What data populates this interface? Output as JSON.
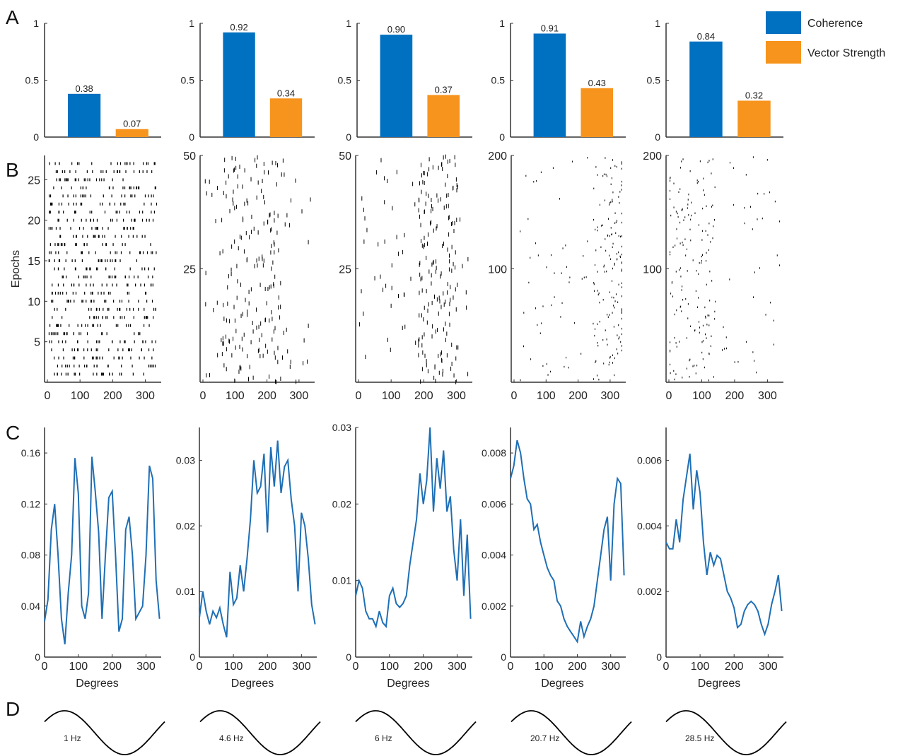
{
  "panel_labels": [
    "A",
    "B",
    "C",
    "D"
  ],
  "colors": {
    "coherence": "#0070C0",
    "vector_strength": "#F7941D",
    "line": "#1F6FB5",
    "raster": "#000000",
    "axis": "#333333"
  },
  "legend": [
    {
      "label": "Coherence",
      "color": "#0070C0"
    },
    {
      "label": "Vector Strength",
      "color": "#F7941D"
    }
  ],
  "chart_data": [
    {
      "panel": "A",
      "type": "bar",
      "column": 1,
      "categories": [
        "Coherence",
        "Vector Strength"
      ],
      "values": [
        0.38,
        0.07
      ],
      "value_labels": [
        "0.38",
        "0.07"
      ],
      "ylim": [
        0,
        1
      ],
      "yticks": [
        "0",
        "0.5",
        "1"
      ]
    },
    {
      "panel": "A",
      "type": "bar",
      "column": 2,
      "categories": [
        "Coherence",
        "Vector Strength"
      ],
      "values": [
        0.92,
        0.34
      ],
      "value_labels": [
        "0.92",
        "0.34"
      ],
      "ylim": [
        0,
        1
      ],
      "yticks": [
        "0",
        "0.5",
        "1"
      ]
    },
    {
      "panel": "A",
      "type": "bar",
      "column": 3,
      "categories": [
        "Coherence",
        "Vector Strength"
      ],
      "values": [
        0.9,
        0.37
      ],
      "value_labels": [
        "0.90",
        "0.37"
      ],
      "ylim": [
        0,
        1
      ],
      "yticks": [
        "0",
        "0.5",
        "1"
      ]
    },
    {
      "panel": "A",
      "type": "bar",
      "column": 4,
      "categories": [
        "Coherence",
        "Vector Strength"
      ],
      "values": [
        0.91,
        0.43
      ],
      "value_labels": [
        "0.91",
        "0.43"
      ],
      "ylim": [
        0,
        1
      ],
      "yticks": [
        "0",
        "0.5",
        "1"
      ]
    },
    {
      "panel": "A",
      "type": "bar",
      "column": 5,
      "categories": [
        "Coherence",
        "Vector Strength"
      ],
      "values": [
        0.84,
        0.32
      ],
      "value_labels": [
        "0.84",
        "0.32"
      ],
      "ylim": [
        0,
        1
      ],
      "yticks": [
        "0",
        "0.5",
        "1"
      ]
    },
    {
      "panel": "B",
      "type": "scatter",
      "column": 1,
      "ylabel": "Epochs",
      "xlim": [
        0,
        340
      ],
      "ylim": [
        0,
        28
      ],
      "xticks": [
        "0",
        "100",
        "200",
        "300"
      ],
      "yticks": [
        "5",
        "10",
        "15",
        "20",
        "25"
      ],
      "dense": true,
      "raster": [
        {
          "t": 16,
          "phases": [
            10,
            22,
            50,
            58,
            64,
            84,
            100,
            108,
            135,
            148,
            160,
            175,
            190,
            205,
            225,
            240,
            258,
            270,
            290,
            305
          ]
        },
        {
          "t": 40,
          "phases": [
            18,
            40,
            46,
            72,
            95,
            114,
            128,
            152,
            170,
            184,
            210,
            238,
            250,
            276,
            300,
            318
          ]
        }
      ]
    },
    {
      "panel": "B",
      "type": "scatter",
      "column": 2,
      "xlim": [
        0,
        340
      ],
      "ylim": [
        0,
        50
      ],
      "xticks": [
        "0",
        "100",
        "200",
        "300"
      ],
      "yticks": [
        "25",
        "50"
      ]
    },
    {
      "panel": "B",
      "type": "scatter",
      "column": 3,
      "xlim": [
        0,
        340
      ],
      "ylim": [
        0,
        50
      ],
      "xticks": [
        "0",
        "100",
        "200",
        "300"
      ],
      "yticks": [
        "25",
        "50"
      ]
    },
    {
      "panel": "B",
      "type": "scatter",
      "column": 4,
      "xlim": [
        0,
        340
      ],
      "ylim": [
        0,
        200
      ],
      "xticks": [
        "0",
        "100",
        "200",
        "300"
      ],
      "yticks": [
        "100",
        "200"
      ]
    },
    {
      "panel": "B",
      "type": "scatter",
      "column": 5,
      "xlim": [
        0,
        340
      ],
      "ylim": [
        0,
        200
      ],
      "xticks": [
        "0",
        "100",
        "200",
        "300"
      ],
      "yticks": [
        "100",
        "200"
      ]
    },
    {
      "panel": "C",
      "type": "line",
      "column": 1,
      "xlabel": "Degrees",
      "xlim": [
        0,
        345
      ],
      "ylim": [
        0,
        0.18
      ],
      "xticks": [
        "0",
        "100",
        "200",
        "300"
      ],
      "yticks": [
        "0",
        "0.04",
        "0.08",
        "0.12",
        "0.16"
      ],
      "x": [
        0,
        10,
        20,
        30,
        40,
        50,
        60,
        70,
        80,
        90,
        100,
        110,
        120,
        130,
        140,
        150,
        160,
        170,
        180,
        190,
        200,
        210,
        220,
        230,
        240,
        250,
        260,
        270,
        280,
        290,
        300,
        310,
        320,
        330,
        340
      ],
      "y": [
        0.028,
        0.045,
        0.1,
        0.12,
        0.08,
        0.03,
        0.01,
        0.05,
        0.08,
        0.156,
        0.128,
        0.04,
        0.03,
        0.05,
        0.157,
        0.13,
        0.098,
        0.03,
        0.08,
        0.125,
        0.13,
        0.08,
        0.02,
        0.03,
        0.1,
        0.11,
        0.08,
        0.03,
        0.035,
        0.04,
        0.08,
        0.15,
        0.14,
        0.06,
        0.03
      ]
    },
    {
      "panel": "C",
      "type": "line",
      "column": 2,
      "xlabel": "Degrees",
      "xlim": [
        0,
        345
      ],
      "ylim": [
        0,
        0.035
      ],
      "xticks": [
        "0",
        "100",
        "200",
        "300"
      ],
      "yticks": [
        "0",
        "0.01",
        "0.02",
        "0.03"
      ],
      "x": [
        0,
        10,
        20,
        30,
        40,
        50,
        60,
        70,
        80,
        90,
        100,
        110,
        120,
        130,
        140,
        150,
        160,
        170,
        180,
        190,
        200,
        210,
        220,
        230,
        240,
        250,
        260,
        270,
        280,
        290,
        300,
        310,
        320,
        330,
        340
      ],
      "y": [
        0.006,
        0.01,
        0.007,
        0.005,
        0.007,
        0.006,
        0.0075,
        0.005,
        0.003,
        0.013,
        0.008,
        0.009,
        0.014,
        0.01,
        0.015,
        0.021,
        0.03,
        0.025,
        0.026,
        0.031,
        0.019,
        0.032,
        0.026,
        0.033,
        0.025,
        0.029,
        0.03,
        0.024,
        0.02,
        0.01,
        0.022,
        0.02,
        0.015,
        0.008,
        0.005
      ]
    },
    {
      "panel": "C",
      "type": "line",
      "column": 3,
      "xlabel": "Degrees",
      "xlim": [
        0,
        345
      ],
      "ylim": [
        0,
        0.03
      ],
      "xticks": [
        "0",
        "100",
        "200",
        "300"
      ],
      "yticks": [
        "0",
        "0.01",
        "0.02",
        "0.03"
      ],
      "x": [
        0,
        10,
        20,
        30,
        40,
        50,
        60,
        70,
        80,
        90,
        100,
        110,
        120,
        130,
        140,
        150,
        160,
        170,
        180,
        190,
        200,
        210,
        220,
        230,
        240,
        250,
        260,
        270,
        280,
        290,
        300,
        310,
        320,
        330,
        340
      ],
      "y": [
        0.008,
        0.01,
        0.009,
        0.006,
        0.005,
        0.005,
        0.004,
        0.006,
        0.0045,
        0.004,
        0.008,
        0.009,
        0.007,
        0.0065,
        0.007,
        0.008,
        0.012,
        0.015,
        0.018,
        0.024,
        0.02,
        0.023,
        0.03,
        0.019,
        0.026,
        0.022,
        0.027,
        0.019,
        0.021,
        0.014,
        0.01,
        0.018,
        0.008,
        0.016,
        0.005
      ]
    },
    {
      "panel": "C",
      "type": "line",
      "column": 4,
      "xlabel": "Degrees",
      "xlim": [
        0,
        345
      ],
      "ylim": [
        0,
        0.009
      ],
      "xticks": [
        "0",
        "100",
        "200",
        "300"
      ],
      "yticks": [
        "0",
        "0.002",
        "0.004",
        "0.006",
        "0.008"
      ],
      "x": [
        0,
        10,
        20,
        30,
        40,
        50,
        60,
        70,
        80,
        90,
        100,
        110,
        120,
        130,
        140,
        150,
        160,
        170,
        180,
        190,
        200,
        210,
        220,
        230,
        240,
        250,
        260,
        270,
        280,
        290,
        300,
        310,
        320,
        330,
        340
      ],
      "y": [
        0.007,
        0.0075,
        0.0085,
        0.008,
        0.007,
        0.0062,
        0.006,
        0.005,
        0.0052,
        0.0045,
        0.004,
        0.0035,
        0.0032,
        0.003,
        0.0022,
        0.002,
        0.0015,
        0.0012,
        0.001,
        0.0008,
        0.0006,
        0.0014,
        0.0008,
        0.0012,
        0.0015,
        0.002,
        0.003,
        0.004,
        0.005,
        0.0055,
        0.003,
        0.006,
        0.007,
        0.0068,
        0.0032
      ]
    },
    {
      "panel": "C",
      "type": "line",
      "column": 5,
      "xlabel": "Degrees",
      "xlim": [
        0,
        345
      ],
      "ylim": [
        0,
        0.007
      ],
      "xticks": [
        "0",
        "100",
        "200",
        "300"
      ],
      "yticks": [
        "0",
        "0.002",
        "0.004",
        "0.006"
      ],
      "x": [
        0,
        10,
        20,
        30,
        40,
        50,
        60,
        70,
        80,
        90,
        100,
        110,
        120,
        130,
        140,
        150,
        160,
        170,
        180,
        190,
        200,
        210,
        220,
        230,
        240,
        250,
        260,
        270,
        280,
        290,
        300,
        310,
        320,
        330,
        340
      ],
      "y": [
        0.0035,
        0.0033,
        0.0033,
        0.0042,
        0.0035,
        0.0048,
        0.0055,
        0.0062,
        0.0045,
        0.0057,
        0.005,
        0.0035,
        0.0025,
        0.0032,
        0.0028,
        0.0031,
        0.003,
        0.0025,
        0.002,
        0.0018,
        0.0015,
        0.0009,
        0.001,
        0.0014,
        0.0016,
        0.0017,
        0.0016,
        0.0014,
        0.001,
        0.0007,
        0.001,
        0.0016,
        0.002,
        0.0025,
        0.0014
      ]
    }
  ],
  "sine_labels": [
    "1 Hz",
    "4.6 Hz",
    "6 Hz",
    "20.7 Hz",
    "28.5 Hz"
  ]
}
